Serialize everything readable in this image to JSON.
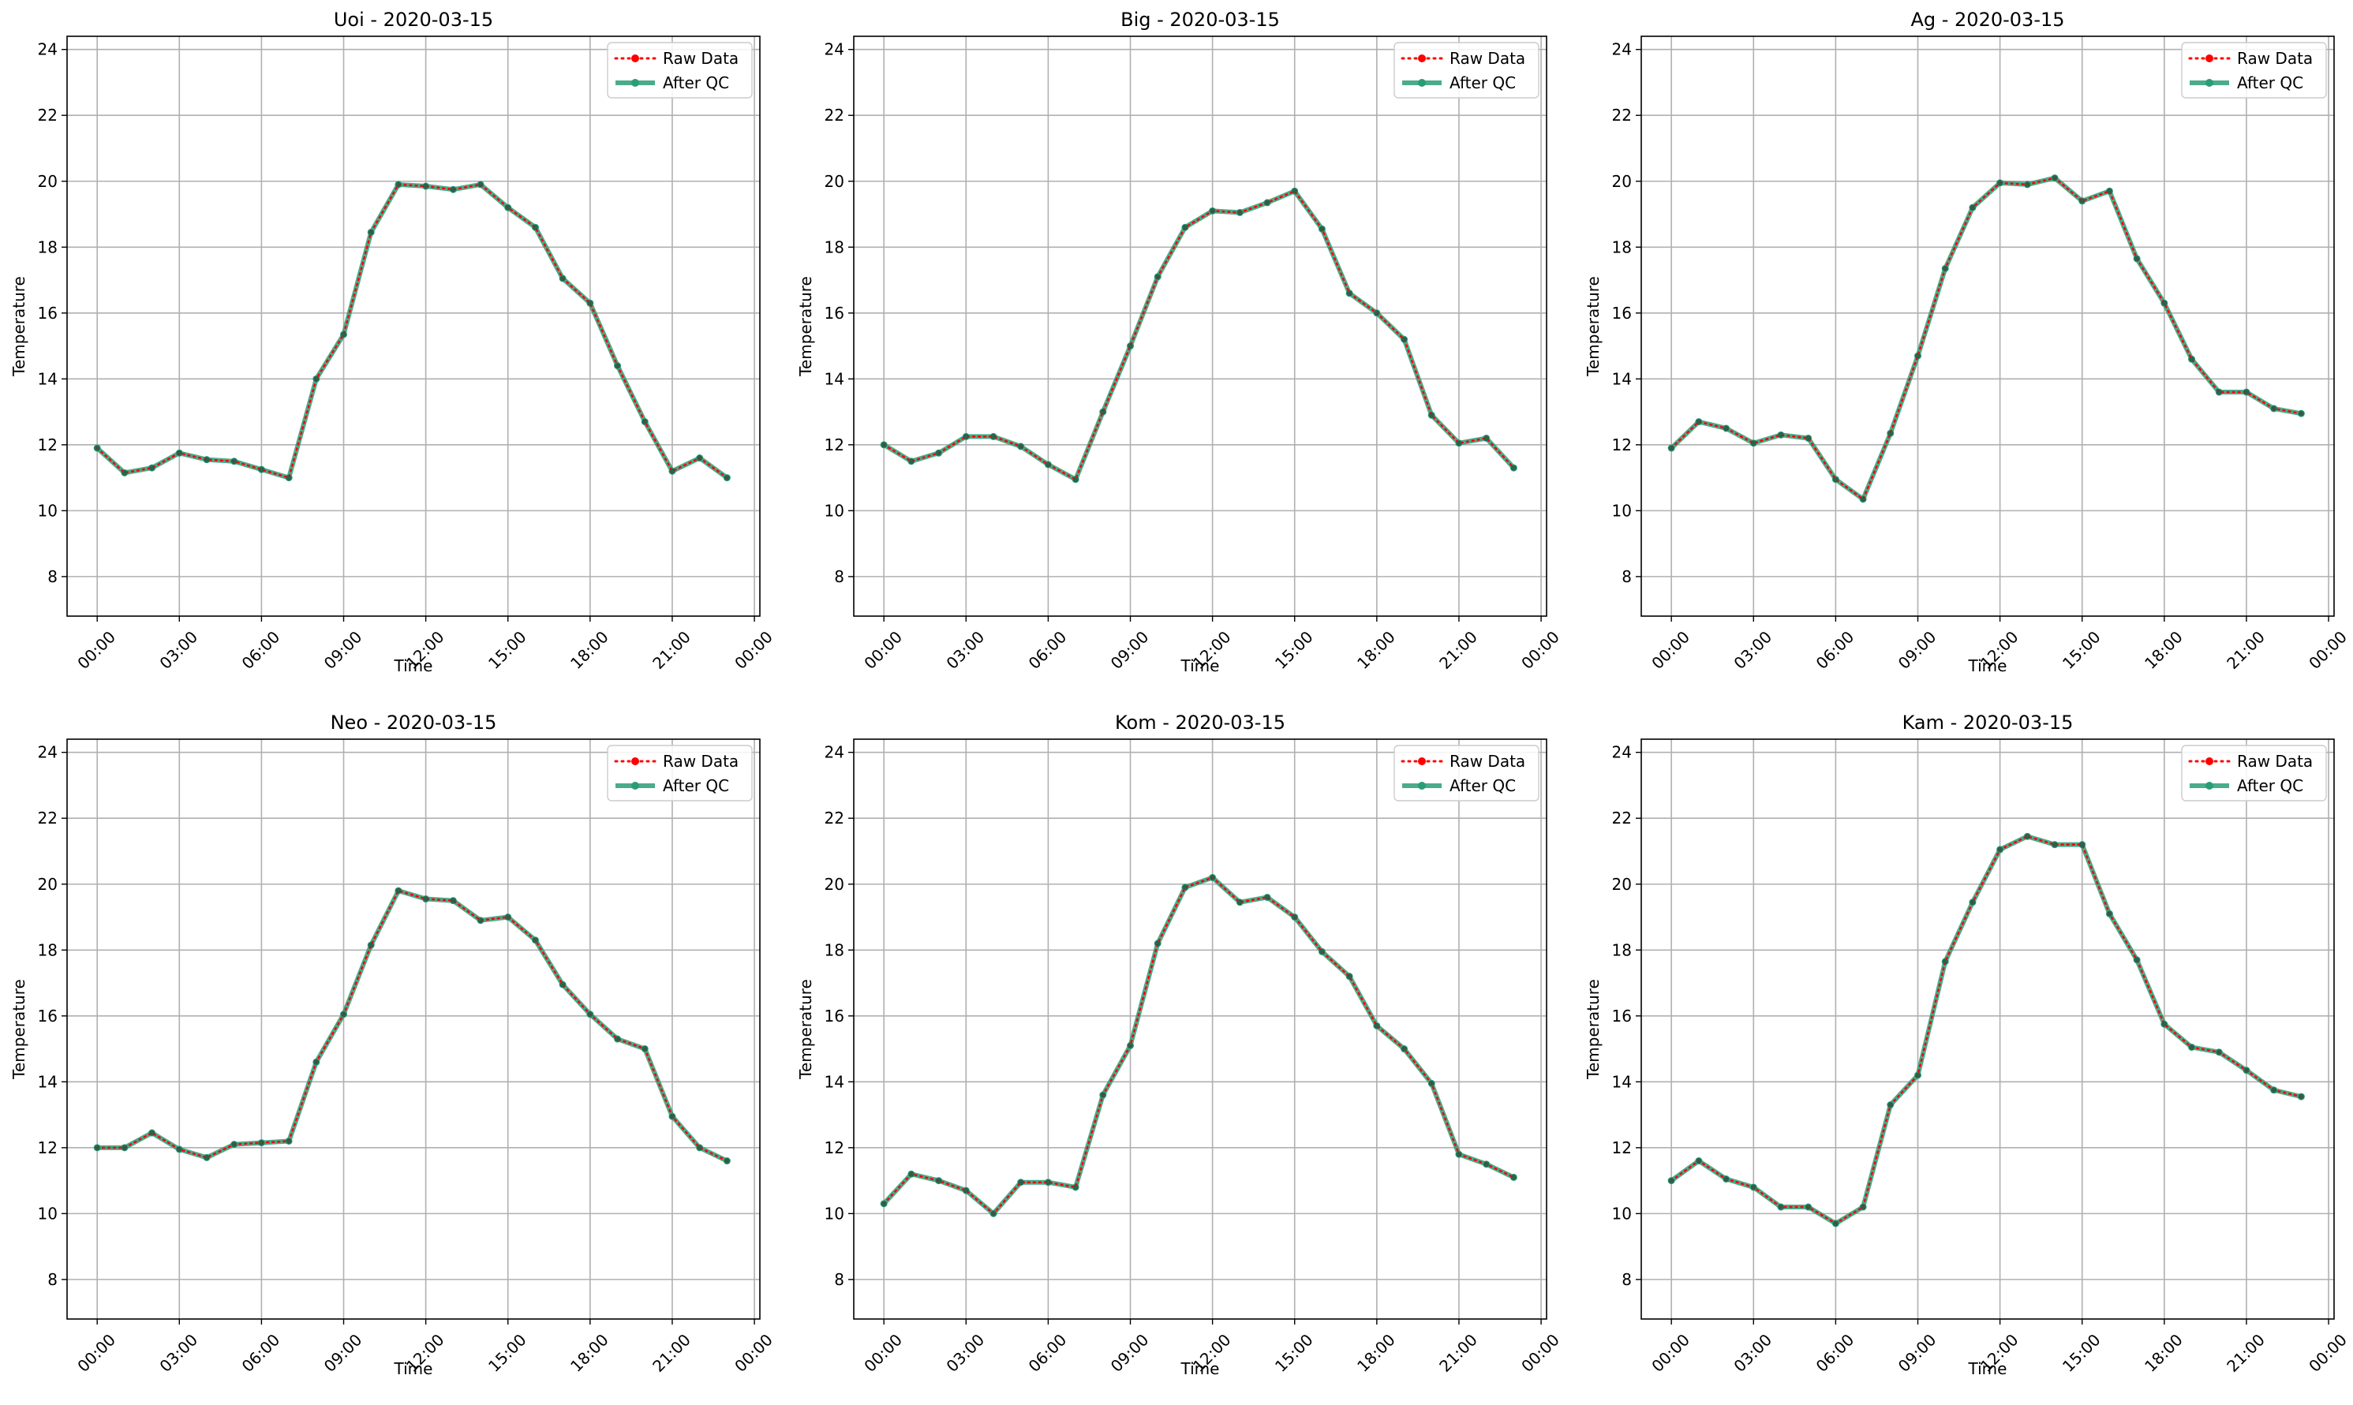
{
  "figure": {
    "x_tick_labels": [
      "00:00",
      "03:00",
      "06:00",
      "09:00",
      "12:00",
      "15:00",
      "18:00",
      "21:00",
      "00:00"
    ],
    "y_ticks": [
      8,
      10,
      12,
      14,
      16,
      18,
      20,
      22,
      24
    ],
    "ylim": [
      6.8,
      24.4
    ],
    "xlim_hours": [
      -1.1,
      24.2
    ],
    "grid": true,
    "legend_position": "upper right",
    "colors": {
      "raw": "#ff0000",
      "qc": "#2a9d78",
      "grid": "#b0b0b0",
      "axis": "#000000"
    }
  },
  "chart_data": [
    {
      "type": "line",
      "title": "Uoi - 2020-03-15",
      "xlabel": "Time",
      "ylabel": "Temperature",
      "x_hours": [
        0,
        1,
        2,
        3,
        4,
        5,
        6,
        7,
        8,
        9,
        10,
        11,
        12,
        13,
        14,
        15,
        16,
        17,
        18,
        19,
        20,
        21,
        22,
        23
      ],
      "series": [
        {
          "name": "Raw Data",
          "style": "dotted",
          "values": [
            11.9,
            11.15,
            11.3,
            11.75,
            11.55,
            11.5,
            11.25,
            11.0,
            14.0,
            15.35,
            18.45,
            19.9,
            19.85,
            19.75,
            19.9,
            19.2,
            18.6,
            17.05,
            16.3,
            14.4,
            12.7,
            11.2,
            11.6,
            11.0
          ]
        },
        {
          "name": "After QC",
          "style": "solid",
          "values": [
            11.9,
            11.15,
            11.3,
            11.75,
            11.55,
            11.5,
            11.25,
            11.0,
            14.0,
            15.35,
            18.45,
            19.9,
            19.85,
            19.75,
            19.9,
            19.2,
            18.6,
            17.05,
            16.3,
            14.4,
            12.7,
            11.2,
            11.6,
            11.0
          ]
        }
      ]
    },
    {
      "type": "line",
      "title": "Big - 2020-03-15",
      "xlabel": "Time",
      "ylabel": "Temperature",
      "x_hours": [
        0,
        1,
        2,
        3,
        4,
        5,
        6,
        7,
        8,
        9,
        10,
        11,
        12,
        13,
        14,
        15,
        16,
        17,
        18,
        19,
        20,
        21,
        22,
        23
      ],
      "series": [
        {
          "name": "Raw Data",
          "style": "dotted",
          "values": [
            12.0,
            11.5,
            11.75,
            12.25,
            12.25,
            11.95,
            11.4,
            10.95,
            13.0,
            15.0,
            17.1,
            18.6,
            19.1,
            19.05,
            19.35,
            19.7,
            18.55,
            16.6,
            16.0,
            15.2,
            12.9,
            12.05,
            12.2,
            11.3
          ]
        },
        {
          "name": "After QC",
          "style": "solid",
          "values": [
            12.0,
            11.5,
            11.75,
            12.25,
            12.25,
            11.95,
            11.4,
            10.95,
            13.0,
            15.0,
            17.1,
            18.6,
            19.1,
            19.05,
            19.35,
            19.7,
            18.55,
            16.6,
            16.0,
            15.2,
            12.9,
            12.05,
            12.2,
            11.3
          ]
        }
      ]
    },
    {
      "type": "line",
      "title": "Ag - 2020-03-15",
      "xlabel": "Time",
      "ylabel": "Temperature",
      "x_hours": [
        0,
        1,
        2,
        3,
        4,
        5,
        6,
        7,
        8,
        9,
        10,
        11,
        12,
        13,
        14,
        15,
        16,
        17,
        18,
        19,
        20,
        21,
        22,
        23
      ],
      "series": [
        {
          "name": "Raw Data",
          "style": "dotted",
          "values": [
            11.9,
            12.7,
            12.5,
            12.05,
            12.3,
            12.2,
            10.95,
            10.35,
            12.35,
            14.7,
            17.35,
            19.2,
            19.95,
            19.9,
            20.1,
            19.4,
            19.7,
            17.65,
            16.3,
            14.6,
            13.6,
            13.6,
            13.1,
            12.95
          ]
        },
        {
          "name": "After QC",
          "style": "solid",
          "values": [
            11.9,
            12.7,
            12.5,
            12.05,
            12.3,
            12.2,
            10.95,
            10.35,
            12.35,
            14.7,
            17.35,
            19.2,
            19.95,
            19.9,
            20.1,
            19.4,
            19.7,
            17.65,
            16.3,
            14.6,
            13.6,
            13.6,
            13.1,
            12.95
          ]
        }
      ]
    },
    {
      "type": "line",
      "title": "Neo - 2020-03-15",
      "xlabel": "Time",
      "ylabel": "Temperature",
      "x_hours": [
        0,
        1,
        2,
        3,
        4,
        5,
        6,
        7,
        8,
        9,
        10,
        11,
        12,
        13,
        14,
        15,
        16,
        17,
        18,
        19,
        20,
        21,
        22,
        23
      ],
      "series": [
        {
          "name": "Raw Data",
          "style": "dotted",
          "values": [
            12.0,
            12.0,
            12.45,
            11.95,
            11.7,
            12.1,
            12.15,
            12.2,
            14.6,
            16.05,
            18.15,
            19.8,
            19.55,
            19.5,
            18.9,
            19.0,
            18.3,
            16.95,
            16.05,
            15.3,
            15.0,
            12.95,
            12.0,
            11.6
          ]
        },
        {
          "name": "After QC",
          "style": "solid",
          "values": [
            12.0,
            12.0,
            12.45,
            11.95,
            11.7,
            12.1,
            12.15,
            12.2,
            14.6,
            16.05,
            18.15,
            19.8,
            19.55,
            19.5,
            18.9,
            19.0,
            18.3,
            16.95,
            16.05,
            15.3,
            15.0,
            12.95,
            12.0,
            11.6
          ]
        }
      ]
    },
    {
      "type": "line",
      "title": "Kom - 2020-03-15",
      "xlabel": "Time",
      "ylabel": "Temperature",
      "x_hours": [
        0,
        1,
        2,
        3,
        4,
        5,
        6,
        7,
        8,
        9,
        10,
        11,
        12,
        13,
        14,
        15,
        16,
        17,
        18,
        19,
        20,
        21,
        22,
        23
      ],
      "series": [
        {
          "name": "Raw Data",
          "style": "dotted",
          "values": [
            10.3,
            11.2,
            11.0,
            10.7,
            10.0,
            10.95,
            10.95,
            10.8,
            13.6,
            15.1,
            18.2,
            19.9,
            20.2,
            19.45,
            19.6,
            19.0,
            17.95,
            17.2,
            15.7,
            15.0,
            13.95,
            11.8,
            11.5,
            11.1
          ]
        },
        {
          "name": "After QC",
          "style": "solid",
          "values": [
            10.3,
            11.2,
            11.0,
            10.7,
            10.0,
            10.95,
            10.95,
            10.8,
            13.6,
            15.1,
            18.2,
            19.9,
            20.2,
            19.45,
            19.6,
            19.0,
            17.95,
            17.2,
            15.7,
            15.0,
            13.95,
            11.8,
            11.5,
            11.1
          ]
        }
      ]
    },
    {
      "type": "line",
      "title": "Kam - 2020-03-15",
      "xlabel": "Time",
      "ylabel": "Temperature",
      "x_hours": [
        0,
        1,
        2,
        3,
        4,
        5,
        6,
        7,
        8,
        9,
        10,
        11,
        12,
        13,
        14,
        15,
        16,
        17,
        18,
        19,
        20,
        21,
        22,
        23
      ],
      "series": [
        {
          "name": "Raw Data",
          "style": "dotted",
          "values": [
            11.0,
            11.6,
            11.05,
            10.8,
            10.2,
            10.2,
            9.7,
            10.2,
            13.3,
            14.2,
            17.65,
            19.45,
            21.05,
            21.45,
            21.2,
            21.2,
            19.1,
            17.7,
            15.75,
            15.05,
            14.9,
            14.35,
            13.75,
            13.55
          ]
        },
        {
          "name": "After QC",
          "style": "solid",
          "values": [
            11.0,
            11.6,
            11.05,
            10.8,
            10.2,
            10.2,
            9.7,
            10.2,
            13.3,
            14.2,
            17.65,
            19.45,
            21.05,
            21.45,
            21.2,
            21.2,
            19.1,
            17.7,
            15.75,
            15.05,
            14.9,
            14.35,
            13.75,
            13.55
          ]
        }
      ]
    }
  ]
}
